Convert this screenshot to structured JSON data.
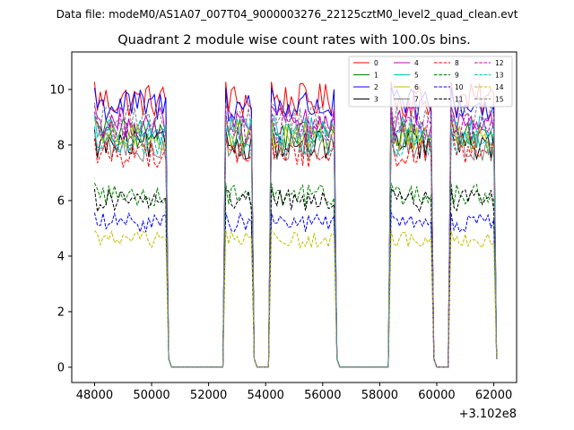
{
  "suptitle": "Data file: modeM0/AS1A07_007T04_9000003276_22125cztM0_level2_quad_clean.evt",
  "chart_data": {
    "type": "line",
    "title": "Quadrant 2 module wise count rates with 100.0s bins.",
    "xlabel": "",
    "ylabel": "",
    "x_offset_label": "+3.102e8",
    "xlim": [
      47200,
      62800
    ],
    "ylim": [
      -0.55,
      11.35
    ],
    "xticks": [
      48000,
      50000,
      52000,
      54000,
      56000,
      58000,
      60000,
      62000
    ],
    "xtick_labels": [
      "48000",
      "50000",
      "52000",
      "54000",
      "56000",
      "58000",
      "60000",
      "62000"
    ],
    "yticks": [
      0,
      2,
      4,
      6,
      8,
      10
    ],
    "ytick_labels": [
      "0",
      "2",
      "4",
      "6",
      "8",
      "10"
    ],
    "grid": false,
    "legend_position": "top-right",
    "legend_columns": 4,
    "segments": [
      {
        "start": 48000,
        "end": 50500,
        "drop_to": 0.3
      },
      {
        "start": 52600,
        "end": 53500,
        "drop_to": 0.3
      },
      {
        "start": 54200,
        "end": 56400,
        "drop_to": 0.3
      },
      {
        "start": 58400,
        "end": 59800,
        "drop_to": 0.3
      },
      {
        "start": 60500,
        "end": 62000,
        "drop_to": 0.3
      }
    ],
    "gap_value": 0,
    "gaps": [
      [
        50700,
        52500
      ],
      [
        53600,
        54100
      ],
      [
        56500,
        58300
      ],
      [
        59900,
        60400
      ]
    ],
    "bin_width": 100,
    "series": [
      {
        "name": "0",
        "mean": 9.6,
        "color": "#ff0000",
        "dash": "solid"
      },
      {
        "name": "1",
        "mean": 8.4,
        "color": "#008000",
        "dash": "solid"
      },
      {
        "name": "2",
        "mean": 9.4,
        "color": "#0000ff",
        "dash": "solid"
      },
      {
        "name": "3",
        "mean": 8.0,
        "color": "#000000",
        "dash": "solid"
      },
      {
        "name": "4",
        "mean": 8.8,
        "color": "#bf00bf",
        "dash": "solid"
      },
      {
        "name": "5",
        "mean": 8.5,
        "color": "#00bfbf",
        "dash": "solid"
      },
      {
        "name": "6",
        "mean": 8.3,
        "color": "#bfbf00",
        "dash": "solid"
      },
      {
        "name": "7",
        "mean": 7.9,
        "color": "#808080",
        "dash": "solid"
      },
      {
        "name": "8",
        "mean": 7.7,
        "color": "#ff0000",
        "dash": "dashed"
      },
      {
        "name": "9",
        "mean": 6.2,
        "color": "#008000",
        "dash": "dashed"
      },
      {
        "name": "10",
        "mean": 5.2,
        "color": "#0000ff",
        "dash": "dashed"
      },
      {
        "name": "11",
        "mean": 6.0,
        "color": "#000000",
        "dash": "dashed"
      },
      {
        "name": "12",
        "mean": 8.6,
        "color": "#bf00bf",
        "dash": "dashed"
      },
      {
        "name": "13",
        "mean": 8.1,
        "color": "#00bfbf",
        "dash": "dashed"
      },
      {
        "name": "14",
        "mean": 4.6,
        "color": "#bfbf00",
        "dash": "dashed"
      },
      {
        "name": "15",
        "mean": 8.9,
        "color": "#808080",
        "dash": "dashed"
      }
    ]
  }
}
